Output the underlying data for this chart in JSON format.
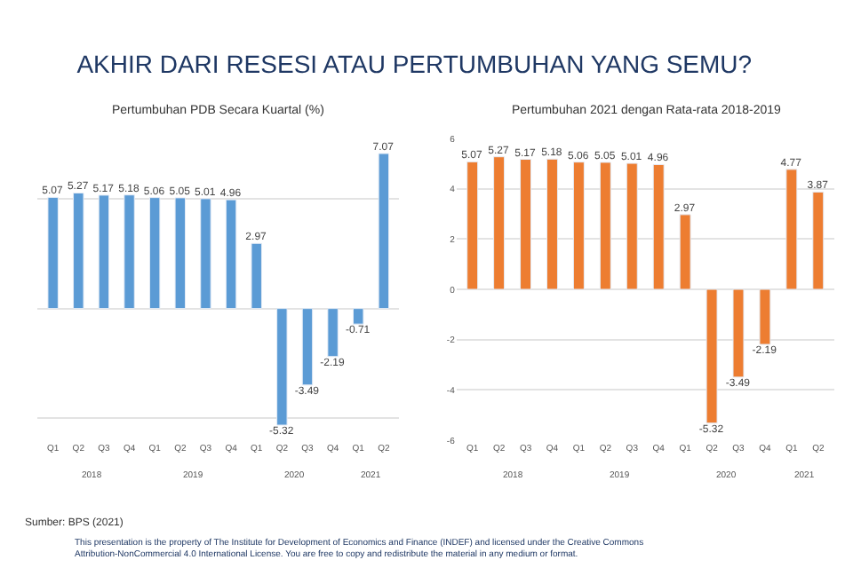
{
  "chart_data": [
    {
      "type": "other",
      "title": "AKHIR DARI RESESI ATAU PERTUMBUHAN YANG SEMU?",
      "annotations": [
        "Sumber: BPS (2021)",
        "This presentation is the property of The Institute for Development of Economics and Finance (INDEF) and licensed under the Creative Commons Attribution-NonCommercial 4.0 International License. You are free to copy and redistribute the material in any medium or format."
      ]
    },
    {
      "type": "bar",
      "title": "Pertumbuhan PDB Secara Kuartal (%)",
      "categories": [
        "Q1",
        "Q2",
        "Q3",
        "Q4",
        "Q1",
        "Q2",
        "Q3",
        "Q4",
        "Q1",
        "Q2",
        "Q3",
        "Q4",
        "Q1",
        "Q2"
      ],
      "values": [
        5.07,
        5.27,
        5.17,
        5.18,
        5.06,
        5.05,
        5.01,
        4.96,
        2.97,
        -5.32,
        -3.49,
        -2.19,
        -0.71,
        7.07
      ],
      "color": "#5b9bd5",
      "tick_labels": "x",
      "grid": "y",
      "data_labels": true,
      "annotations": [
        "2018",
        "2019",
        "2020",
        "2021"
      ]
    },
    {
      "type": "bar",
      "title": "Pertumbuhan 2021 dengan Rata-rata 2018-2019",
      "categories": [
        "Q1",
        "Q2",
        "Q3",
        "Q4",
        "Q1",
        "Q2",
        "Q3",
        "Q4",
        "Q1",
        "Q2",
        "Q3",
        "Q4",
        "Q1",
        "Q2"
      ],
      "values": [
        5.07,
        5.27,
        5.17,
        5.18,
        5.06,
        5.05,
        5.01,
        4.96,
        2.97,
        -5.32,
        -3.49,
        -2.19,
        4.77,
        3.87
      ],
      "color": "#ed7d31",
      "ylim": [
        -6,
        6
      ],
      "yticks": [
        -6,
        -4,
        -2,
        0,
        2,
        4,
        6
      ],
      "grid": "y",
      "data_labels": true,
      "annotations": [
        "2018",
        "2019",
        "2020",
        "2021"
      ]
    }
  ]
}
